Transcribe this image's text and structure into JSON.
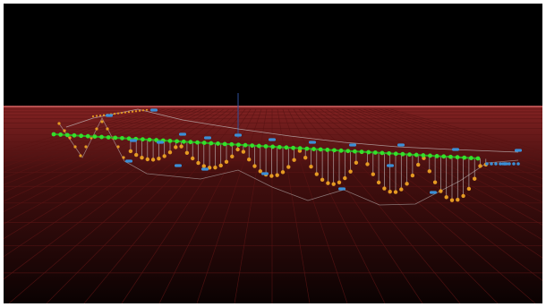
{
  "viewport": {
    "background": "#000000",
    "horizon_glow": "#7a1c1c",
    "grid_color": "#5a1414",
    "track_color": "#cccccc",
    "icons": [
      "grid-floor",
      "reference-rail",
      "track-node",
      "support-post",
      "scene-axis"
    ]
  },
  "rails": [
    {
      "name": "green-rail",
      "color": "#35e02b"
    },
    {
      "name": "blue-rail",
      "color": "#3b8fd6"
    },
    {
      "name": "orange-rail",
      "color": "#e59a22"
    }
  ]
}
